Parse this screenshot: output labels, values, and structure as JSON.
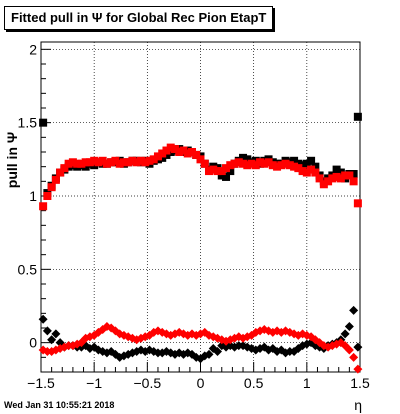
{
  "chart_data": {
    "type": "scatter",
    "title": "Fitted pull in Ψ  for Global Rec Pion EtapT",
    "xlabel": "η",
    "ylabel": "pull in  Ψ",
    "xlim": [
      -1.5,
      1.5
    ],
    "ylim": [
      -0.2,
      2.05
    ],
    "grid": true,
    "x_ticks": [
      {
        "value": -1.5,
        "label": "−1.5"
      },
      {
        "value": -1.0,
        "label": "−1"
      },
      {
        "value": -0.5,
        "label": "−0.5"
      },
      {
        "value": 0.0,
        "label": "0"
      },
      {
        "value": 0.5,
        "label": "0.5"
      },
      {
        "value": 1.0,
        "label": "1"
      },
      {
        "value": 1.5,
        "label": "1.5"
      }
    ],
    "y_ticks": [
      {
        "value": 0.0,
        "label": "0"
      },
      {
        "value": 0.5,
        "label": "0.5"
      },
      {
        "value": 1.0,
        "label": "1"
      },
      {
        "value": 1.5,
        "label": "1.5"
      },
      {
        "value": 2.0,
        "label": "2"
      }
    ],
    "series": [
      {
        "marker": "square",
        "color": "#000000",
        "x": [
          -1.48,
          -1.44,
          -1.4,
          -1.36,
          -1.32,
          -1.28,
          -1.24,
          -1.2,
          -1.16,
          -1.12,
          -1.08,
          -1.04,
          -1.0,
          -0.96,
          -0.92,
          -0.88,
          -0.84,
          -0.8,
          -0.76,
          -0.72,
          -0.68,
          -0.64,
          -0.6,
          -0.56,
          -0.52,
          -0.48,
          -0.44,
          -0.4,
          -0.36,
          -0.32,
          -0.28,
          -0.24,
          -0.2,
          -0.16,
          -0.12,
          -0.08,
          -0.04,
          0.0,
          0.04,
          0.08,
          0.12,
          0.16,
          0.2,
          0.24,
          0.28,
          0.32,
          0.36,
          0.4,
          0.44,
          0.48,
          0.52,
          0.56,
          0.6,
          0.64,
          0.68,
          0.72,
          0.76,
          0.8,
          0.84,
          0.88,
          0.92,
          0.96,
          1.0,
          1.04,
          1.08,
          1.12,
          1.16,
          1.2,
          1.24,
          1.28,
          1.32,
          1.36,
          1.4,
          1.44,
          1.48
        ],
        "y": [
          1.5,
          1.02,
          1.07,
          1.12,
          1.16,
          1.18,
          1.2,
          1.21,
          1.2,
          1.21,
          1.2,
          1.22,
          1.21,
          1.23,
          1.22,
          1.22,
          1.23,
          1.23,
          1.24,
          1.22,
          1.23,
          1.24,
          1.24,
          1.23,
          1.24,
          1.22,
          1.24,
          1.25,
          1.26,
          1.28,
          1.3,
          1.31,
          1.32,
          1.3,
          1.31,
          1.3,
          1.28,
          1.27,
          1.22,
          1.18,
          1.2,
          1.19,
          1.14,
          1.13,
          1.17,
          1.22,
          1.24,
          1.26,
          1.25,
          1.23,
          1.24,
          1.22,
          1.24,
          1.25,
          1.23,
          1.22,
          1.22,
          1.24,
          1.23,
          1.24,
          1.22,
          1.21,
          1.22,
          1.24,
          1.2,
          1.14,
          1.1,
          1.12,
          1.14,
          1.18,
          1.16,
          1.12,
          1.15,
          1.15,
          1.54
        ],
        "yerr": 0.015
      },
      {
        "marker": "square",
        "color": "#ff0000",
        "x": [
          -1.48,
          -1.44,
          -1.4,
          -1.36,
          -1.32,
          -1.28,
          -1.24,
          -1.2,
          -1.16,
          -1.12,
          -1.08,
          -1.04,
          -1.0,
          -0.96,
          -0.92,
          -0.88,
          -0.84,
          -0.8,
          -0.76,
          -0.72,
          -0.68,
          -0.64,
          -0.6,
          -0.56,
          -0.52,
          -0.48,
          -0.44,
          -0.4,
          -0.36,
          -0.32,
          -0.28,
          -0.24,
          -0.2,
          -0.16,
          -0.12,
          -0.08,
          -0.04,
          0.0,
          0.04,
          0.08,
          0.12,
          0.16,
          0.2,
          0.24,
          0.28,
          0.32,
          0.36,
          0.4,
          0.44,
          0.48,
          0.52,
          0.56,
          0.6,
          0.64,
          0.68,
          0.72,
          0.76,
          0.8,
          0.84,
          0.88,
          0.92,
          0.96,
          1.0,
          1.04,
          1.08,
          1.12,
          1.16,
          1.2,
          1.24,
          1.28,
          1.32,
          1.36,
          1.4,
          1.44,
          1.48
        ],
        "y": [
          0.93,
          1.0,
          1.06,
          1.11,
          1.16,
          1.19,
          1.22,
          1.23,
          1.22,
          1.22,
          1.23,
          1.23,
          1.24,
          1.23,
          1.24,
          1.22,
          1.23,
          1.24,
          1.22,
          1.23,
          1.23,
          1.24,
          1.23,
          1.24,
          1.23,
          1.24,
          1.25,
          1.27,
          1.29,
          1.31,
          1.33,
          1.32,
          1.3,
          1.31,
          1.29,
          1.3,
          1.28,
          1.25,
          1.22,
          1.17,
          1.18,
          1.17,
          1.17,
          1.19,
          1.21,
          1.22,
          1.23,
          1.22,
          1.21,
          1.22,
          1.21,
          1.23,
          1.22,
          1.23,
          1.21,
          1.2,
          1.21,
          1.22,
          1.21,
          1.2,
          1.19,
          1.17,
          1.16,
          1.18,
          1.16,
          1.12,
          1.08,
          1.1,
          1.12,
          1.13,
          1.12,
          1.14,
          1.14,
          1.1,
          0.95
        ],
        "yerr": 0.015
      },
      {
        "marker": "diamond",
        "color": "#000000",
        "x": [
          -1.48,
          -1.44,
          -1.4,
          -1.36,
          -1.32,
          -1.28,
          -1.24,
          -1.2,
          -1.16,
          -1.12,
          -1.08,
          -1.04,
          -1.0,
          -0.96,
          -0.92,
          -0.88,
          -0.84,
          -0.8,
          -0.76,
          -0.72,
          -0.68,
          -0.64,
          -0.6,
          -0.56,
          -0.52,
          -0.48,
          -0.44,
          -0.4,
          -0.36,
          -0.32,
          -0.28,
          -0.24,
          -0.2,
          -0.16,
          -0.12,
          -0.08,
          -0.04,
          0.0,
          0.04,
          0.08,
          0.12,
          0.16,
          0.2,
          0.24,
          0.28,
          0.32,
          0.36,
          0.4,
          0.44,
          0.48,
          0.52,
          0.56,
          0.6,
          0.64,
          0.68,
          0.72,
          0.76,
          0.8,
          0.84,
          0.88,
          0.92,
          0.96,
          1.0,
          1.04,
          1.08,
          1.12,
          1.16,
          1.2,
          1.24,
          1.28,
          1.32,
          1.36,
          1.4,
          1.44,
          1.48
        ],
        "y": [
          0.16,
          0.08,
          0.02,
          0.06,
          0.0,
          -0.03,
          -0.02,
          -0.02,
          -0.03,
          -0.03,
          -0.02,
          -0.04,
          -0.03,
          -0.05,
          -0.06,
          -0.07,
          -0.06,
          -0.08,
          -0.1,
          -0.09,
          -0.08,
          -0.07,
          -0.06,
          -0.05,
          -0.06,
          -0.05,
          -0.06,
          -0.07,
          -0.07,
          -0.06,
          -0.07,
          -0.08,
          -0.07,
          -0.08,
          -0.07,
          -0.08,
          -0.1,
          -0.11,
          -0.09,
          -0.08,
          -0.04,
          -0.06,
          -0.02,
          -0.03,
          -0.02,
          -0.03,
          -0.02,
          -0.02,
          -0.03,
          -0.04,
          -0.05,
          -0.04,
          -0.03,
          -0.05,
          -0.04,
          -0.06,
          -0.05,
          -0.07,
          -0.06,
          -0.06,
          -0.04,
          -0.02,
          -0.01,
          0.0,
          -0.02,
          -0.03,
          -0.04,
          -0.02,
          -0.01,
          0.0,
          0.02,
          0.06,
          0.11,
          0.22,
          -0.03
        ],
        "yerr": 0.02
      },
      {
        "marker": "diamond",
        "color": "#ff0000",
        "x": [
          -1.48,
          -1.44,
          -1.4,
          -1.36,
          -1.32,
          -1.28,
          -1.24,
          -1.2,
          -1.16,
          -1.12,
          -1.08,
          -1.04,
          -1.0,
          -0.96,
          -0.92,
          -0.88,
          -0.84,
          -0.8,
          -0.76,
          -0.72,
          -0.68,
          -0.64,
          -0.6,
          -0.56,
          -0.52,
          -0.48,
          -0.44,
          -0.4,
          -0.36,
          -0.32,
          -0.28,
          -0.24,
          -0.2,
          -0.16,
          -0.12,
          -0.08,
          -0.04,
          0.0,
          0.04,
          0.08,
          0.12,
          0.16,
          0.2,
          0.24,
          0.28,
          0.32,
          0.36,
          0.4,
          0.44,
          0.48,
          0.52,
          0.56,
          0.6,
          0.64,
          0.68,
          0.72,
          0.76,
          0.8,
          0.84,
          0.88,
          0.92,
          0.96,
          1.0,
          1.04,
          1.08,
          1.12,
          1.16,
          1.2,
          1.24,
          1.28,
          1.32,
          1.36,
          1.4,
          1.44,
          1.48
        ],
        "y": [
          -0.05,
          -0.06,
          -0.06,
          -0.05,
          -0.04,
          -0.03,
          -0.02,
          -0.02,
          -0.01,
          0.0,
          0.03,
          0.04,
          0.05,
          0.07,
          0.09,
          0.11,
          0.1,
          0.08,
          0.06,
          0.05,
          0.04,
          0.03,
          0.02,
          0.03,
          0.04,
          0.05,
          0.07,
          0.08,
          0.07,
          0.06,
          0.05,
          0.06,
          0.07,
          0.06,
          0.05,
          0.06,
          0.05,
          0.06,
          0.07,
          0.05,
          0.04,
          0.03,
          0.02,
          0.01,
          0.02,
          0.03,
          0.04,
          0.03,
          0.04,
          0.05,
          0.07,
          0.08,
          0.09,
          0.08,
          0.07,
          0.08,
          0.07,
          0.08,
          0.07,
          0.06,
          0.05,
          0.06,
          0.05,
          0.04,
          0.02,
          0.0,
          -0.02,
          -0.03,
          -0.02,
          -0.01,
          0.0,
          -0.02,
          -0.05,
          -0.1,
          -0.18
        ],
        "yerr": 0.02
      }
    ]
  },
  "footer": {
    "datestamp": "Wed Jan 31 10:55:21 2018"
  }
}
